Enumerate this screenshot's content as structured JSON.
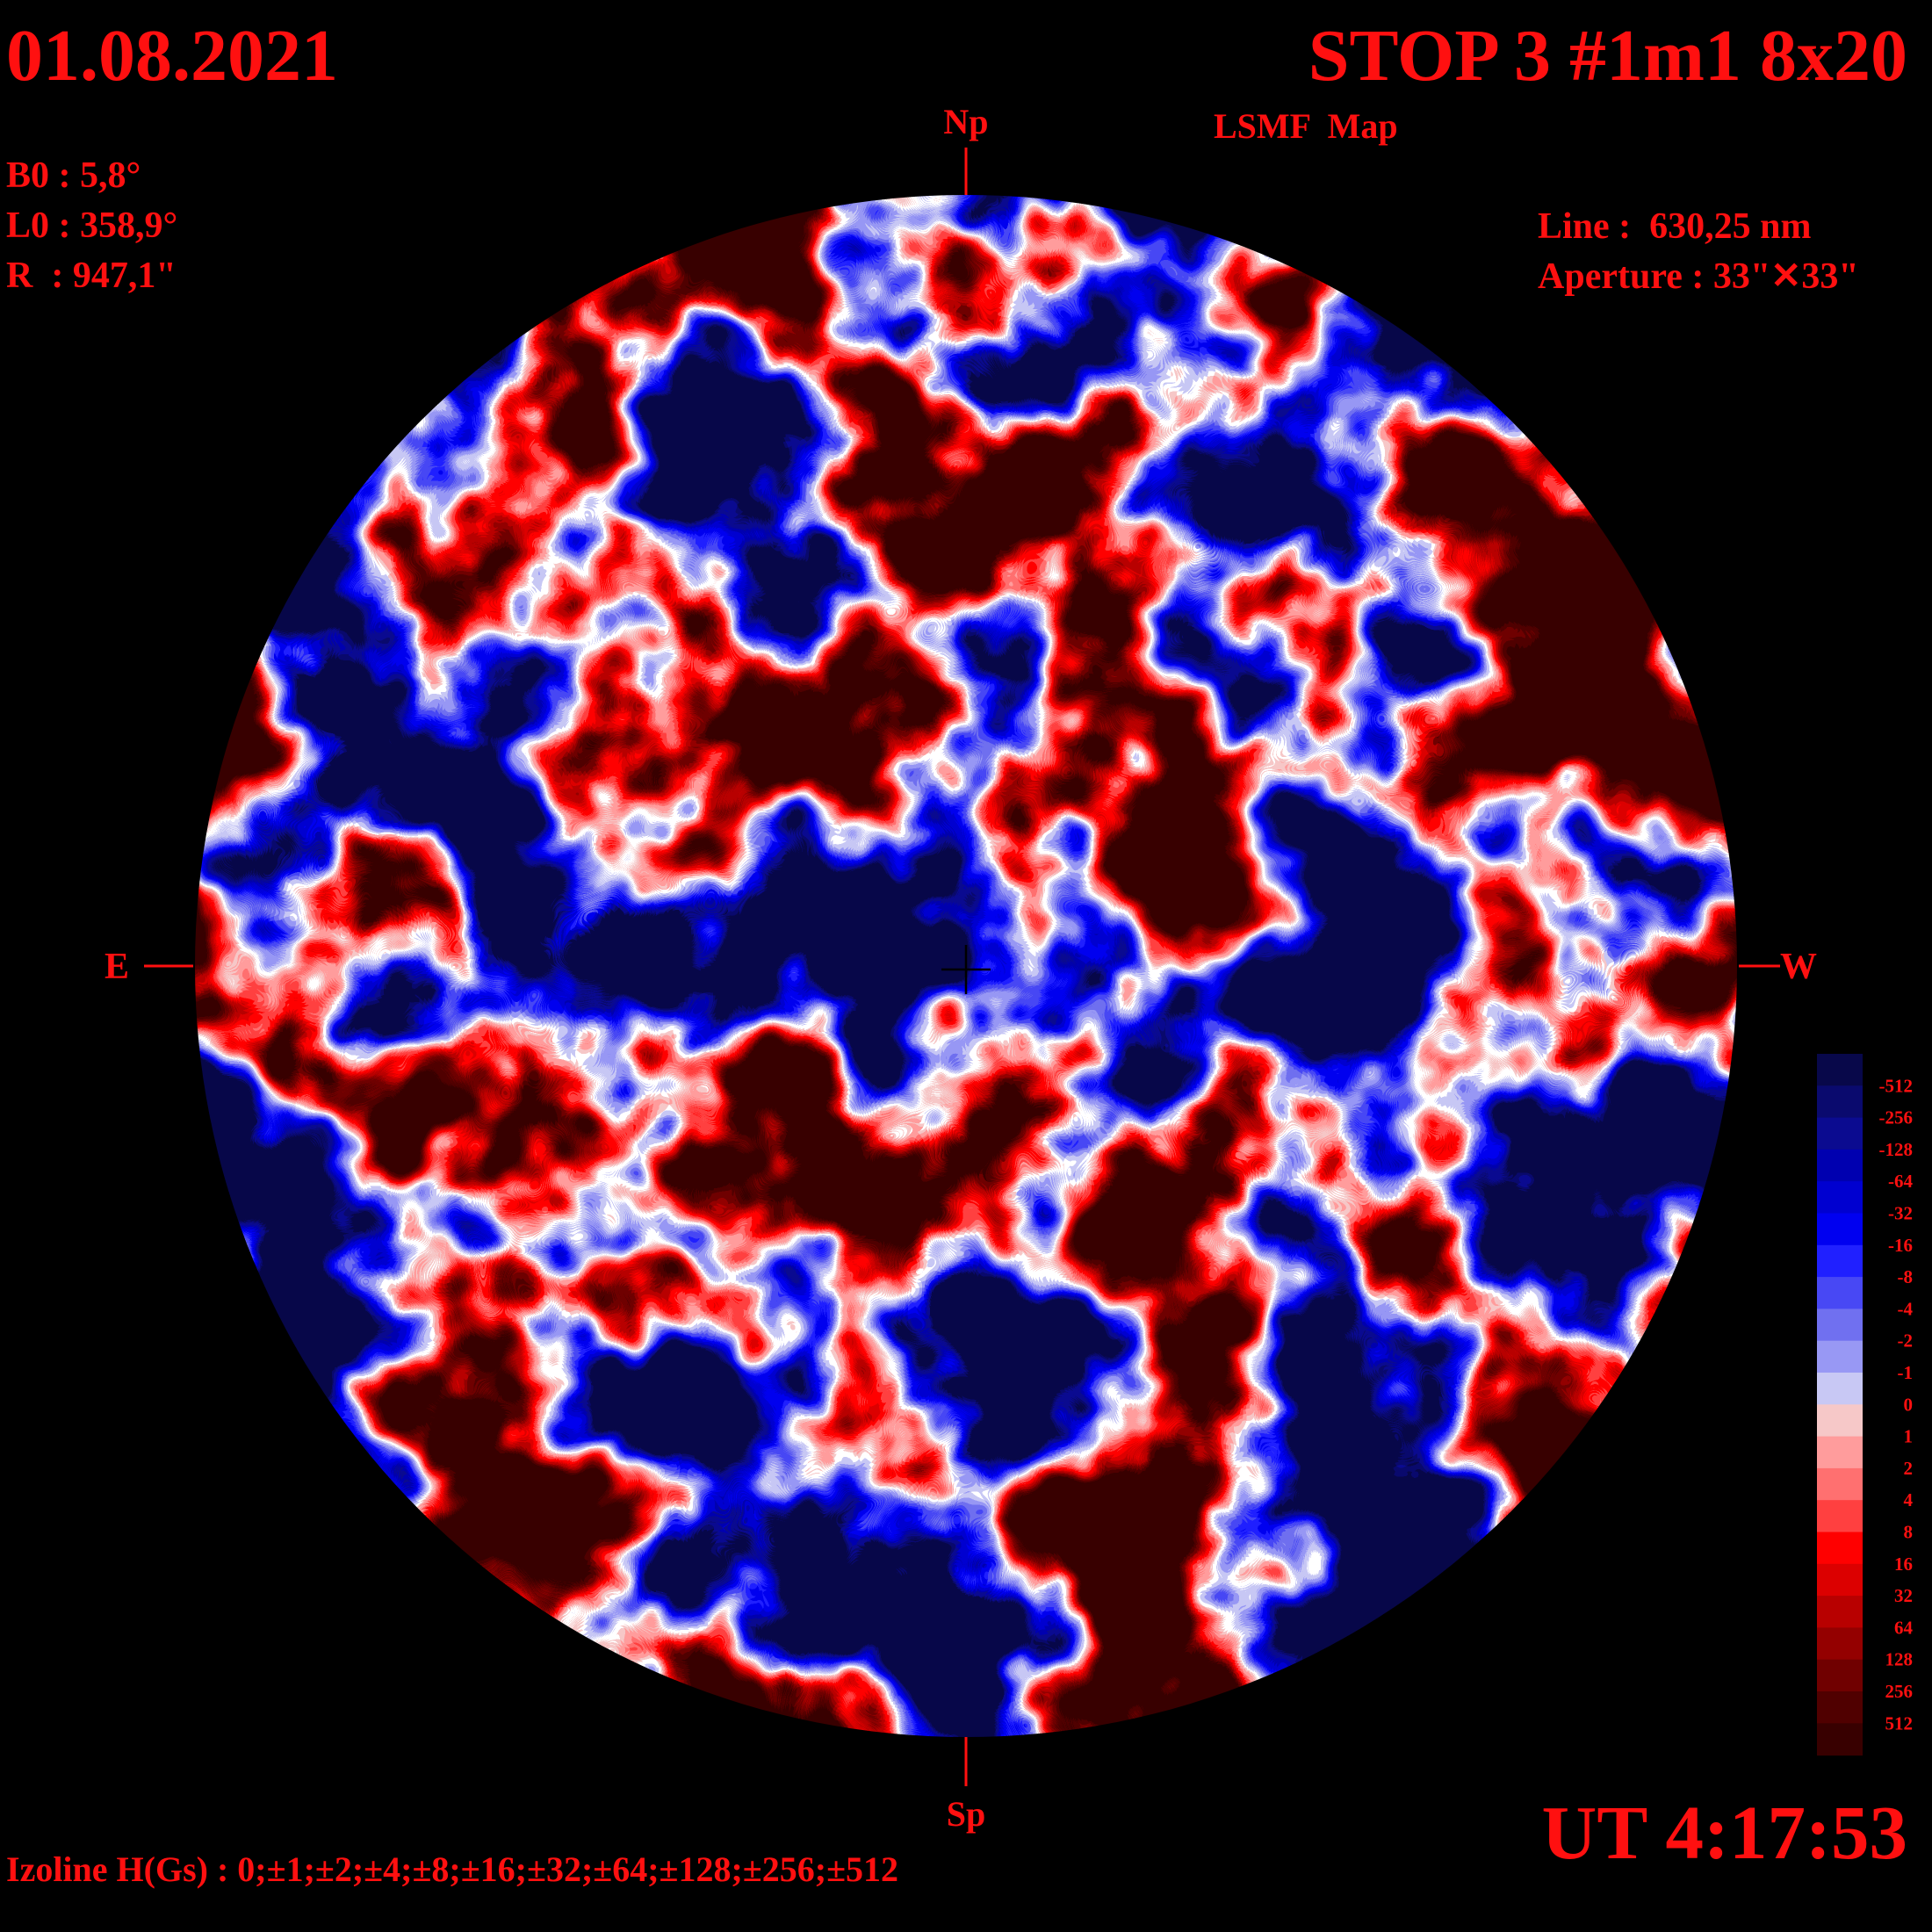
{
  "header": {
    "date": "01.08.2021",
    "title": "STOP 3 #1m1 8x20",
    "subtitle": "LSMF  Map"
  },
  "parameters": [
    "B0 : 5,8°",
    "L0 : 358,9°",
    "R  : 947,1\""
  ],
  "instrument": [
    "Line :  630,25 nm",
    "Aperture : 33\"✕33\""
  ],
  "compass": {
    "north": "Np",
    "south": "Sp",
    "east": "E",
    "west": "W"
  },
  "colorbar": {
    "labels": [
      -512,
      -256,
      -128,
      -64,
      -32,
      -16,
      -8,
      -4,
      -2,
      -1,
      0,
      1,
      2,
      4,
      8,
      16,
      32,
      64,
      128,
      256,
      512
    ]
  },
  "time": "UT 4:17:53",
  "footer": "Izoline H(Gs) : 0;±1;±2;±4;±8;±16;±32;±64;±128;±256;±512"
}
